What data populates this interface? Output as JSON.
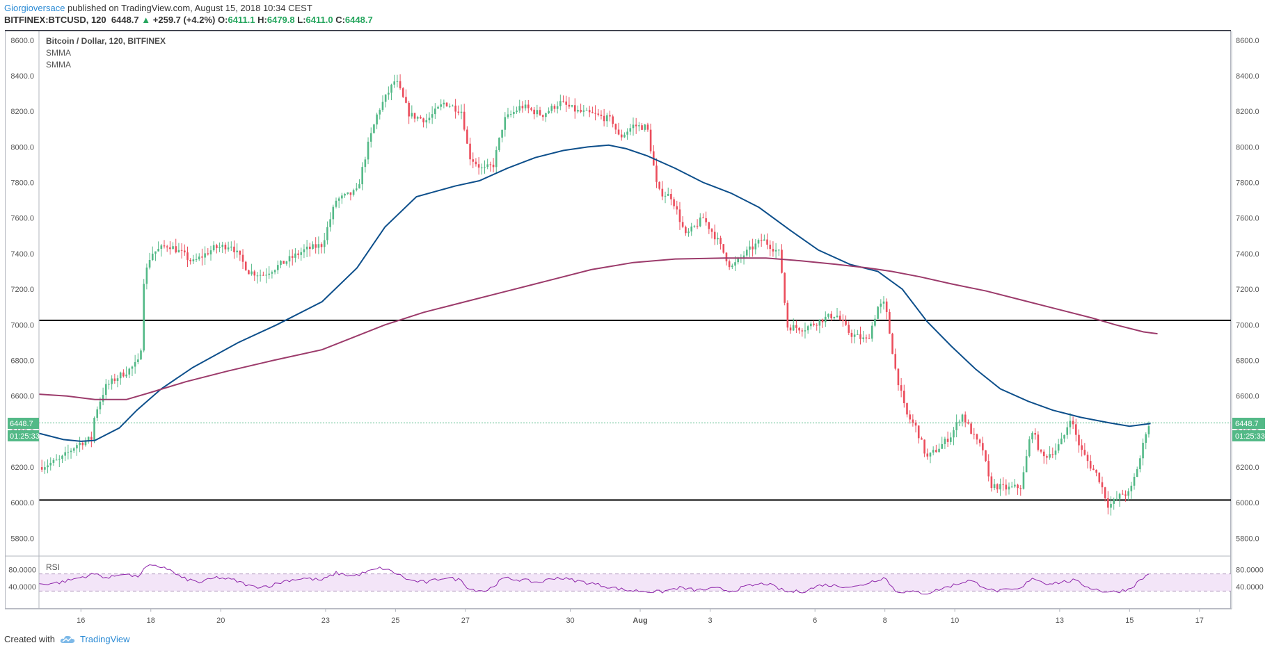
{
  "header": {
    "author": "Giorgioversace",
    "published_text": " published on TradingView.com, August 15, 2018 10:34 CEST",
    "symbol": "BITFINEX:BTCUSD, 120",
    "last": "6448.7",
    "change_arrow": "▲",
    "change": "+259.7 (+4.2%)",
    "o_label": "O:",
    "o": "6411.1",
    "h_label": "H:",
    "h": "6479.8",
    "l_label": "L:",
    "l": "6411.0",
    "c_label": "C:",
    "c": "6448.7"
  },
  "legend": {
    "title": "Bitcoin / Dollar, 120, BITFINEX",
    "ind1": "SMMA",
    "ind2": "SMMA",
    "rsi": "RSI"
  },
  "price_badge": "6448.7",
  "timer_badge": "01:25:33",
  "footer": {
    "created_with": "Created with",
    "brand": "TradingView"
  },
  "colors": {
    "up": "#53b987",
    "down": "#eb4d5c",
    "smma_fast": "#0d4f8b",
    "smma_slow": "#9c3b6b",
    "rsi_line": "#8e24aa",
    "rsi_band": "#f3e5f8",
    "level": "#000000",
    "accent": "#2a8ad4"
  },
  "chart_data": {
    "type": "candlestick",
    "title": "Bitcoin / Dollar, 120, BITFINEX",
    "ylim": [
      5700,
      8650
    ],
    "y_ticks": [
      "8600.0",
      "8400.0",
      "8200.0",
      "8000.0",
      "7800.0",
      "7600.0",
      "7400.0",
      "7200.0",
      "7000.0",
      "6800.0",
      "6600.0",
      "6400.0",
      "6200.0",
      "6000.0",
      "5800.0"
    ],
    "x_ticks": [
      "16",
      "18",
      "20",
      "23",
      "25",
      "27",
      "30",
      "Aug",
      "3",
      "6",
      "8",
      "10",
      "13",
      "15",
      "17"
    ],
    "x_tick_days": [
      16,
      18,
      20,
      23,
      25,
      27,
      30,
      32,
      34,
      37,
      39,
      41,
      44,
      46,
      48
    ],
    "x_range_days": [
      14.8,
      48.9
    ],
    "support_resistance": [
      7025,
      6015
    ],
    "last_price": 6448.7,
    "price_path": [
      [
        14.8,
        6200
      ],
      [
        15.4,
        6240
      ],
      [
        15.9,
        6330
      ],
      [
        16.3,
        6360
      ],
      [
        16.4,
        6500
      ],
      [
        16.7,
        6650
      ],
      [
        17.0,
        6700
      ],
      [
        17.4,
        6750
      ],
      [
        17.7,
        6800
      ],
      [
        17.8,
        7250
      ],
      [
        18.0,
        7400
      ],
      [
        18.5,
        7450
      ],
      [
        18.9,
        7400
      ],
      [
        19.2,
        7350
      ],
      [
        19.8,
        7430
      ],
      [
        20.3,
        7450
      ],
      [
        20.8,
        7300
      ],
      [
        21.2,
        7280
      ],
      [
        21.8,
        7350
      ],
      [
        22.4,
        7420
      ],
      [
        22.9,
        7450
      ],
      [
        23.3,
        7700
      ],
      [
        23.9,
        7750
      ],
      [
        24.2,
        8000
      ],
      [
        24.5,
        8200
      ],
      [
        25.0,
        8380
      ],
      [
        25.4,
        8180
      ],
      [
        25.9,
        8150
      ],
      [
        26.4,
        8250
      ],
      [
        26.9,
        8200
      ],
      [
        27.1,
        7950
      ],
      [
        27.5,
        7870
      ],
      [
        27.8,
        7900
      ],
      [
        28.1,
        8150
      ],
      [
        28.6,
        8230
      ],
      [
        29.2,
        8180
      ],
      [
        29.7,
        8250
      ],
      [
        30.2,
        8200
      ],
      [
        30.7,
        8180
      ],
      [
        31.2,
        8150
      ],
      [
        31.4,
        8050
      ],
      [
        31.8,
        8120
      ],
      [
        32.2,
        8110
      ],
      [
        32.5,
        7750
      ],
      [
        32.9,
        7720
      ],
      [
        33.3,
        7500
      ],
      [
        33.8,
        7600
      ],
      [
        34.2,
        7480
      ],
      [
        34.6,
        7320
      ],
      [
        35.0,
        7400
      ],
      [
        35.5,
        7480
      ],
      [
        36.0,
        7400
      ],
      [
        36.2,
        6990
      ],
      [
        36.7,
        6980
      ],
      [
        37.2,
        7030
      ],
      [
        37.6,
        7060
      ],
      [
        38.0,
        6950
      ],
      [
        38.5,
        6910
      ],
      [
        38.8,
        7100
      ],
      [
        39.0,
        7120
      ],
      [
        39.3,
        6750
      ],
      [
        39.6,
        6500
      ],
      [
        39.9,
        6420
      ],
      [
        40.2,
        6250
      ],
      [
        40.6,
        6320
      ],
      [
        40.9,
        6380
      ],
      [
        41.2,
        6500
      ],
      [
        41.6,
        6350
      ],
      [
        41.8,
        6300
      ],
      [
        42.0,
        6100
      ],
      [
        42.5,
        6080
      ],
      [
        42.9,
        6090
      ],
      [
        43.2,
        6420
      ],
      [
        43.5,
        6250
      ],
      [
        43.9,
        6300
      ],
      [
        44.1,
        6360
      ],
      [
        44.3,
        6480
      ],
      [
        44.6,
        6300
      ],
      [
        44.9,
        6200
      ],
      [
        45.1,
        6150
      ],
      [
        45.4,
        5980
      ],
      [
        45.8,
        6050
      ],
      [
        46.0,
        6050
      ],
      [
        46.3,
        6250
      ],
      [
        46.5,
        6430
      ],
      [
        46.6,
        6449
      ]
    ],
    "series": [
      {
        "name": "SMMA",
        "points": [
          [
            14.8,
            6390
          ],
          [
            15.5,
            6355
          ],
          [
            16.0,
            6345
          ],
          [
            16.4,
            6350
          ],
          [
            17.1,
            6420
          ],
          [
            17.6,
            6520
          ],
          [
            18.3,
            6640
          ],
          [
            19.2,
            6760
          ],
          [
            20.5,
            6900
          ],
          [
            21.6,
            7000
          ],
          [
            22.9,
            7130
          ],
          [
            23.9,
            7320
          ],
          [
            24.7,
            7550
          ],
          [
            25.6,
            7720
          ],
          [
            26.7,
            7780
          ],
          [
            27.4,
            7810
          ],
          [
            28.2,
            7880
          ],
          [
            29.0,
            7940
          ],
          [
            29.8,
            7980
          ],
          [
            30.5,
            8000
          ],
          [
            31.1,
            8010
          ],
          [
            31.6,
            7990
          ],
          [
            32.2,
            7950
          ],
          [
            33.0,
            7880
          ],
          [
            33.8,
            7800
          ],
          [
            34.6,
            7740
          ],
          [
            35.4,
            7660
          ],
          [
            36.3,
            7530
          ],
          [
            37.1,
            7420
          ],
          [
            38.0,
            7340
          ],
          [
            38.8,
            7300
          ],
          [
            39.5,
            7200
          ],
          [
            40.2,
            7020
          ],
          [
            40.9,
            6880
          ],
          [
            41.6,
            6750
          ],
          [
            42.3,
            6640
          ],
          [
            43.1,
            6570
          ],
          [
            43.8,
            6520
          ],
          [
            44.6,
            6480
          ],
          [
            45.4,
            6450
          ],
          [
            46.0,
            6430
          ],
          [
            46.6,
            6445
          ]
        ]
      },
      {
        "name": "SMMA",
        "points": [
          [
            14.8,
            6610
          ],
          [
            15.6,
            6600
          ],
          [
            16.4,
            6580
          ],
          [
            17.3,
            6580
          ],
          [
            18.0,
            6620
          ],
          [
            19.0,
            6680
          ],
          [
            20.2,
            6740
          ],
          [
            21.5,
            6800
          ],
          [
            22.9,
            6860
          ],
          [
            23.8,
            6930
          ],
          [
            24.7,
            7000
          ],
          [
            25.8,
            7070
          ],
          [
            27.0,
            7130
          ],
          [
            28.2,
            7190
          ],
          [
            29.4,
            7250
          ],
          [
            30.6,
            7310
          ],
          [
            31.8,
            7350
          ],
          [
            33.0,
            7370
          ],
          [
            34.4,
            7375
          ],
          [
            35.6,
            7375
          ],
          [
            36.6,
            7360
          ],
          [
            37.6,
            7340
          ],
          [
            38.5,
            7320
          ],
          [
            39.2,
            7300
          ],
          [
            40.0,
            7270
          ],
          [
            40.9,
            7230
          ],
          [
            41.9,
            7190
          ],
          [
            42.9,
            7140
          ],
          [
            43.9,
            7090
          ],
          [
            44.9,
            7040
          ],
          [
            45.6,
            7000
          ],
          [
            46.4,
            6960
          ],
          [
            46.8,
            6950
          ]
        ]
      }
    ],
    "rsi": {
      "ylim": [
        0,
        100
      ],
      "y_ticks": [
        "80.0000",
        "40.0000"
      ],
      "band": [
        30,
        70
      ],
      "points": [
        [
          14.8,
          46
        ],
        [
          15.4,
          50
        ],
        [
          16.0,
          62
        ],
        [
          16.4,
          70
        ],
        [
          16.8,
          60
        ],
        [
          17.2,
          72
        ],
        [
          17.6,
          62
        ],
        [
          17.9,
          88
        ],
        [
          18.4,
          86
        ],
        [
          18.9,
          60
        ],
        [
          19.4,
          50
        ],
        [
          19.9,
          62
        ],
        [
          20.4,
          55
        ],
        [
          20.9,
          40
        ],
        [
          21.4,
          42
        ],
        [
          21.9,
          55
        ],
        [
          22.4,
          60
        ],
        [
          22.9,
          55
        ],
        [
          23.3,
          72
        ],
        [
          23.8,
          65
        ],
        [
          24.2,
          75
        ],
        [
          24.6,
          84
        ],
        [
          25.0,
          72
        ],
        [
          25.4,
          55
        ],
        [
          25.9,
          50
        ],
        [
          26.4,
          62
        ],
        [
          26.9,
          55
        ],
        [
          27.1,
          35
        ],
        [
          27.6,
          30
        ],
        [
          28.1,
          60
        ],
        [
          28.6,
          56
        ],
        [
          29.1,
          50
        ],
        [
          29.6,
          62
        ],
        [
          30.1,
          55
        ],
        [
          30.6,
          48
        ],
        [
          31.1,
          40
        ],
        [
          31.6,
          32
        ],
        [
          32.1,
          30
        ],
        [
          32.6,
          28
        ],
        [
          33.1,
          38
        ],
        [
          33.6,
          32
        ],
        [
          34.2,
          36
        ],
        [
          34.6,
          30
        ],
        [
          35.1,
          42
        ],
        [
          35.6,
          48
        ],
        [
          36.2,
          28
        ],
        [
          36.7,
          30
        ],
        [
          37.2,
          45
        ],
        [
          37.7,
          42
        ],
        [
          38.2,
          40
        ],
        [
          38.6,
          52
        ],
        [
          39.0,
          62
        ],
        [
          39.3,
          30
        ],
        [
          39.7,
          28
        ],
        [
          40.2,
          25
        ],
        [
          40.6,
          35
        ],
        [
          41.0,
          45
        ],
        [
          41.4,
          55
        ],
        [
          41.8,
          42
        ],
        [
          42.1,
          30
        ],
        [
          42.5,
          32
        ],
        [
          42.9,
          35
        ],
        [
          43.2,
          62
        ],
        [
          43.6,
          48
        ],
        [
          44.0,
          50
        ],
        [
          44.4,
          55
        ],
        [
          44.8,
          40
        ],
        [
          45.2,
          30
        ],
        [
          45.6,
          28
        ],
        [
          46.0,
          35
        ],
        [
          46.3,
          55
        ],
        [
          46.6,
          73
        ]
      ]
    },
    "candles": {
      "up_color": "#53b987",
      "down_color": "#eb4d5c"
    },
    "grid": false,
    "legend_position": "top-left"
  }
}
